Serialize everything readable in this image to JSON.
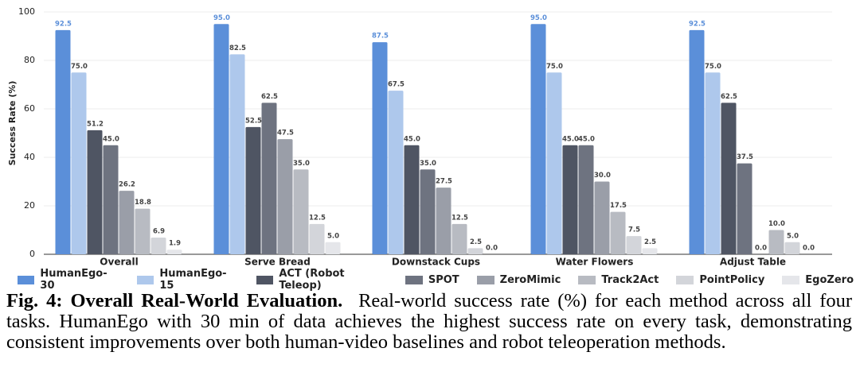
{
  "chart_data": {
    "type": "bar",
    "ylabel": "Success Rate (%)",
    "categories": [
      "Overall",
      "Serve Bread",
      "Downstack Cups",
      "Water Flowers",
      "Adjust Table"
    ],
    "series": [
      {
        "name": "HumanEgo-30",
        "color": "#5b8fd9",
        "values": [
          92.5,
          95.0,
          87.5,
          95.0,
          92.5
        ],
        "value_labels": [
          "92.5",
          "95.0",
          "87.5",
          "95.0",
          "92.5"
        ]
      },
      {
        "name": "HumanEgo-15",
        "color": "#aec8ec",
        "values": [
          75.0,
          82.5,
          67.5,
          75.0,
          75.0
        ],
        "value_labels": [
          "75.0",
          "82.5",
          "67.5",
          "75.0",
          "75.0"
        ]
      },
      {
        "name": "ACT (Robot Teleop)",
        "color": "#4f5563",
        "values": [
          51.2,
          52.5,
          45.0,
          45.0,
          62.5
        ],
        "value_labels": [
          "51.2",
          "52.5",
          "45.0",
          "45.0",
          "62.5"
        ]
      },
      {
        "name": "SPOT",
        "color": "#6e7380",
        "values": [
          45.0,
          62.5,
          35.0,
          45.0,
          37.5
        ],
        "value_labels": [
          "45.0",
          "62.5",
          "35.0",
          "45.0",
          "37.5"
        ]
      },
      {
        "name": "ZeroMimic",
        "color": "#9a9ea8",
        "values": [
          26.2,
          47.5,
          27.5,
          30.0,
          0.0
        ],
        "value_labels": [
          "26.2",
          "47.5",
          "27.5",
          "30.0",
          "0.0"
        ]
      },
      {
        "name": "Track2Act",
        "color": "#b8bbc2",
        "values": [
          18.8,
          35.0,
          12.5,
          17.5,
          10.0
        ],
        "value_labels": [
          "18.8",
          "35.0",
          "12.5",
          "17.5",
          "10.0"
        ]
      },
      {
        "name": "PointPolicy",
        "color": "#d3d5da",
        "values": [
          6.9,
          12.5,
          2.5,
          7.5,
          5.0
        ],
        "value_labels": [
          "6.9",
          "12.5",
          "2.5",
          "7.5",
          "5.0"
        ]
      },
      {
        "name": "EgoZero",
        "color": "#e5e6ea",
        "values": [
          1.9,
          5.0,
          0.0,
          2.5,
          0.0
        ],
        "value_labels": [
          "1.9",
          "5.0",
          "0.0",
          "2.5",
          "0.0"
        ]
      }
    ],
    "ylim": [
      0,
      100
    ],
    "yticks": [
      0,
      20,
      40,
      60,
      80,
      100
    ],
    "grid": true
  },
  "caption": {
    "label": "Fig. 4:",
    "title": "Overall Real-World Evaluation.",
    "text": "Real-world success rate (%) for each method across all four tasks. HumanEgo with 30 min of data achieves the highest success rate on every task, demonstrating consistent improvements over both human-video baselines and robot teleoperation methods."
  }
}
